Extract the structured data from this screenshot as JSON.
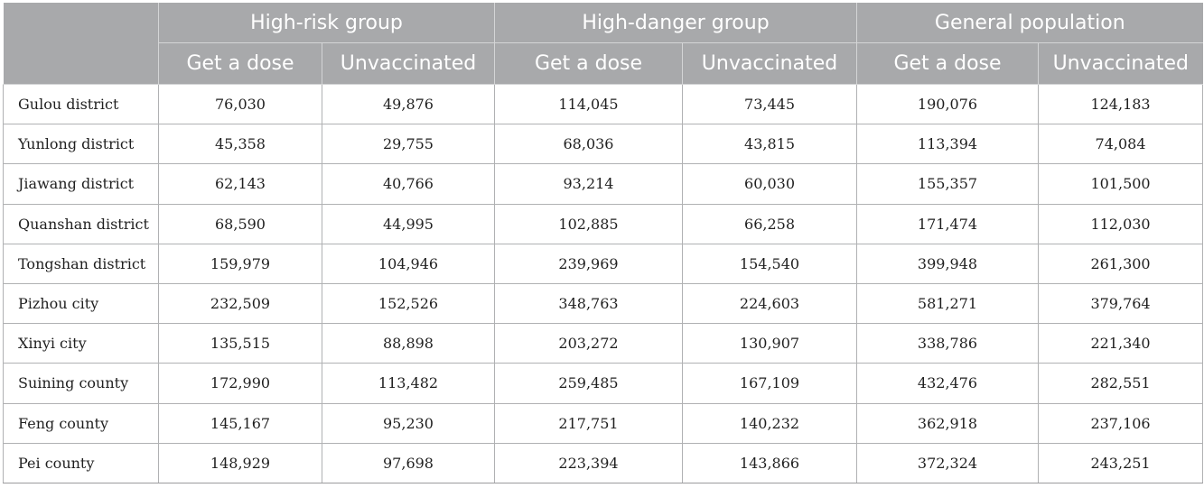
{
  "table": {
    "group_headers": [
      "High-risk group",
      "High-danger group",
      "General population"
    ],
    "sub_headers": [
      "Get a dose",
      "Unvaccinated",
      "Get a dose",
      "Unvaccinated",
      "Get a dose",
      "Unvaccinated"
    ],
    "rows": [
      {
        "label": "Gulou district",
        "values": [
          "76,030",
          "49,876",
          "114,045",
          "73,445",
          "190,076",
          "124,183"
        ]
      },
      {
        "label": "Yunlong district",
        "values": [
          "45,358",
          "29,755",
          "68,036",
          "43,815",
          "113,394",
          "74,084"
        ]
      },
      {
        "label": "Jiawang district",
        "values": [
          "62,143",
          "40,766",
          "93,214",
          "60,030",
          "155,357",
          "101,500"
        ]
      },
      {
        "label": "Quanshan district",
        "values": [
          "68,590",
          "44,995",
          "102,885",
          "66,258",
          "171,474",
          "112,030"
        ]
      },
      {
        "label": "Tongshan district",
        "values": [
          "159,979",
          "104,946",
          "239,969",
          "154,540",
          "399,948",
          "261,300"
        ]
      },
      {
        "label": "Pizhou city",
        "values": [
          "232,509",
          "152,526",
          "348,763",
          "224,603",
          "581,271",
          "379,764"
        ]
      },
      {
        "label": "Xinyi city",
        "values": [
          "135,515",
          "88,898",
          "203,272",
          "130,907",
          "338,786",
          "221,340"
        ]
      },
      {
        "label": "Suining county",
        "values": [
          "172,990",
          "113,482",
          "259,485",
          "167,109",
          "432,476",
          "282,551"
        ]
      },
      {
        "label": "Feng county",
        "values": [
          "145,167",
          "95,230",
          "217,751",
          "140,232",
          "362,918",
          "237,106"
        ]
      },
      {
        "label": "Pei county",
        "values": [
          "148,929",
          "97,698",
          "223,394",
          "143,866",
          "372,324",
          "243,251"
        ]
      }
    ]
  },
  "colors": {
    "header_background": "#a8a9ab",
    "header_text": "#ffffff",
    "cell_border": "#b0b1b3"
  }
}
